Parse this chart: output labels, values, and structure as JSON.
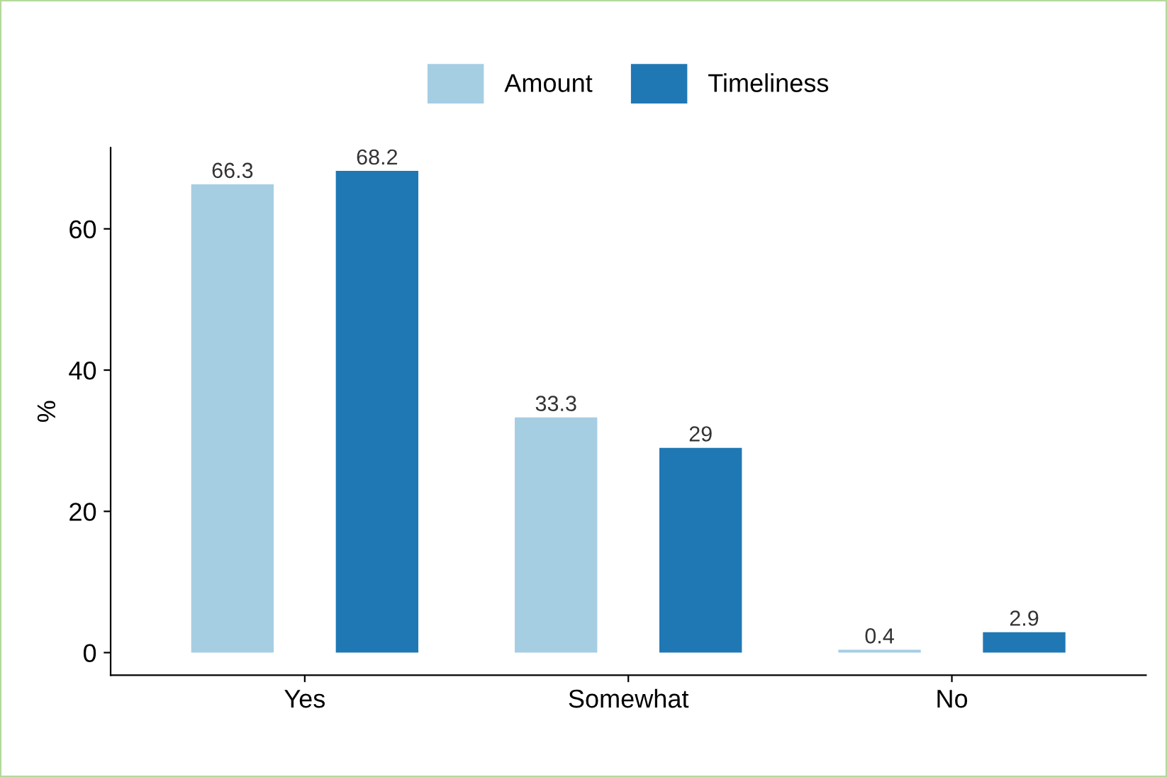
{
  "chart_data": {
    "type": "bar",
    "ylabel": "%",
    "categories": [
      "Yes",
      "Somewhat",
      "No"
    ],
    "series": [
      {
        "name": "Amount",
        "color": "#a6cee3",
        "values": [
          66.3,
          33.3,
          0.4
        ]
      },
      {
        "name": "Timeliness",
        "color": "#1f78b4",
        "values": [
          68.2,
          29,
          2.9
        ]
      }
    ],
    "ylim": [
      -3.2,
      71.5
    ],
    "yticks": [
      0,
      20,
      40,
      60
    ],
    "data_labels": true,
    "legend": "top",
    "grid": false
  }
}
